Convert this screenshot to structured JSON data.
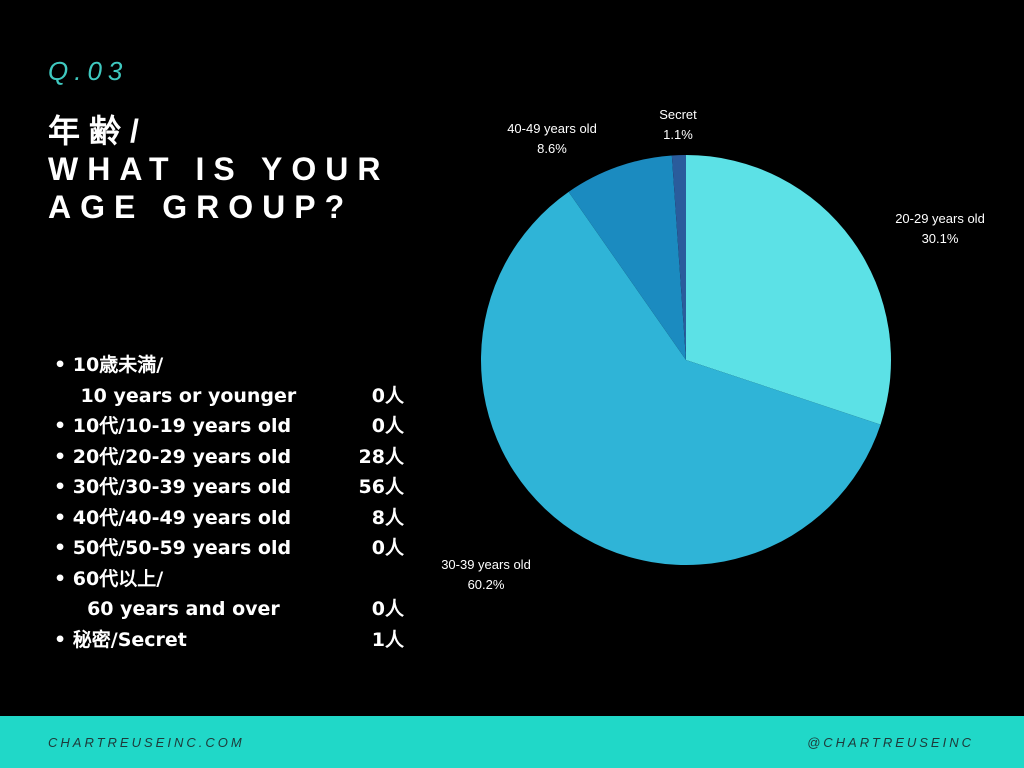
{
  "question_number": "Q.03",
  "title_lines": [
    "年齢/",
    "WHAT IS YOUR",
    "AGE GROUP?"
  ],
  "breakdown": [
    {
      "label": "• 10歳未満/",
      "count": ""
    },
    {
      "label": "    10 years or younger",
      "count": "0人"
    },
    {
      "label": "• 10代/10-19 years old",
      "count": "0人"
    },
    {
      "label": "• 20代/20-29 years old",
      "count": "28人"
    },
    {
      "label": "• 30代/30-39 years old",
      "count": "56人"
    },
    {
      "label": "• 40代/40-49 years old",
      "count": "8人"
    },
    {
      "label": "• 50代/50-59 years old",
      "count": "0人"
    },
    {
      "label": "• 60代以上/",
      "count": ""
    },
    {
      "label": "     60 years and over",
      "count": "0人"
    },
    {
      "label": "• 秘密/Secret",
      "count": "1人"
    }
  ],
  "chart_data": {
    "type": "pie",
    "start": "top, clockwise",
    "slices": [
      {
        "label": "20-29 years old",
        "value": 30.1,
        "pct_label": "30.1%",
        "color": "#5ce1e6"
      },
      {
        "label": "30-39 years old",
        "value": 60.2,
        "pct_label": "60.2%",
        "color": "#2fb4d7"
      },
      {
        "label": "40-49 years old",
        "value": 8.6,
        "pct_label": "8.6%",
        "color": "#1b8bc0"
      },
      {
        "label": "Secret",
        "value": 1.1,
        "pct_label": "1.1%",
        "color": "#2a5c9c"
      }
    ]
  },
  "footer": {
    "left": "CHARTREUSEINC.COM",
    "right": "@CHARTREUSEINC"
  }
}
